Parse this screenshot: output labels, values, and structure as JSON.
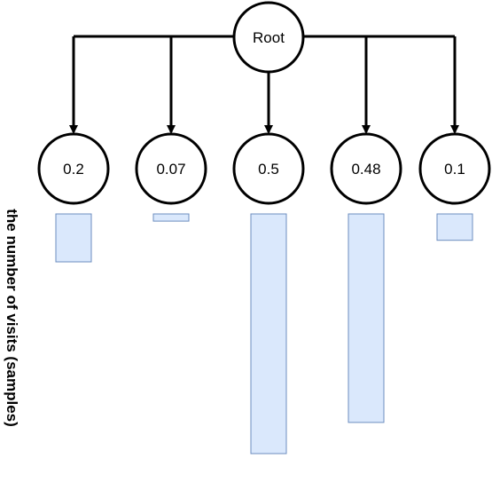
{
  "root": {
    "label": "Root"
  },
  "children": [
    {
      "label": "0.2",
      "visits": 0.2
    },
    {
      "label": "0.07",
      "visits": 0.03
    },
    {
      "label": "0.5",
      "visits": 1.0
    },
    {
      "label": "0.48",
      "visits": 0.87
    },
    {
      "label": "0.1",
      "visits": 0.11
    }
  ],
  "y_axis_label": "the number of visits (samples)",
  "colors": {
    "node_fill": "#ffffff",
    "node_stroke": "#000000",
    "edge": "#000000",
    "bar_fill": "#dae8fc",
    "bar_stroke": "#6c8ebf"
  }
}
